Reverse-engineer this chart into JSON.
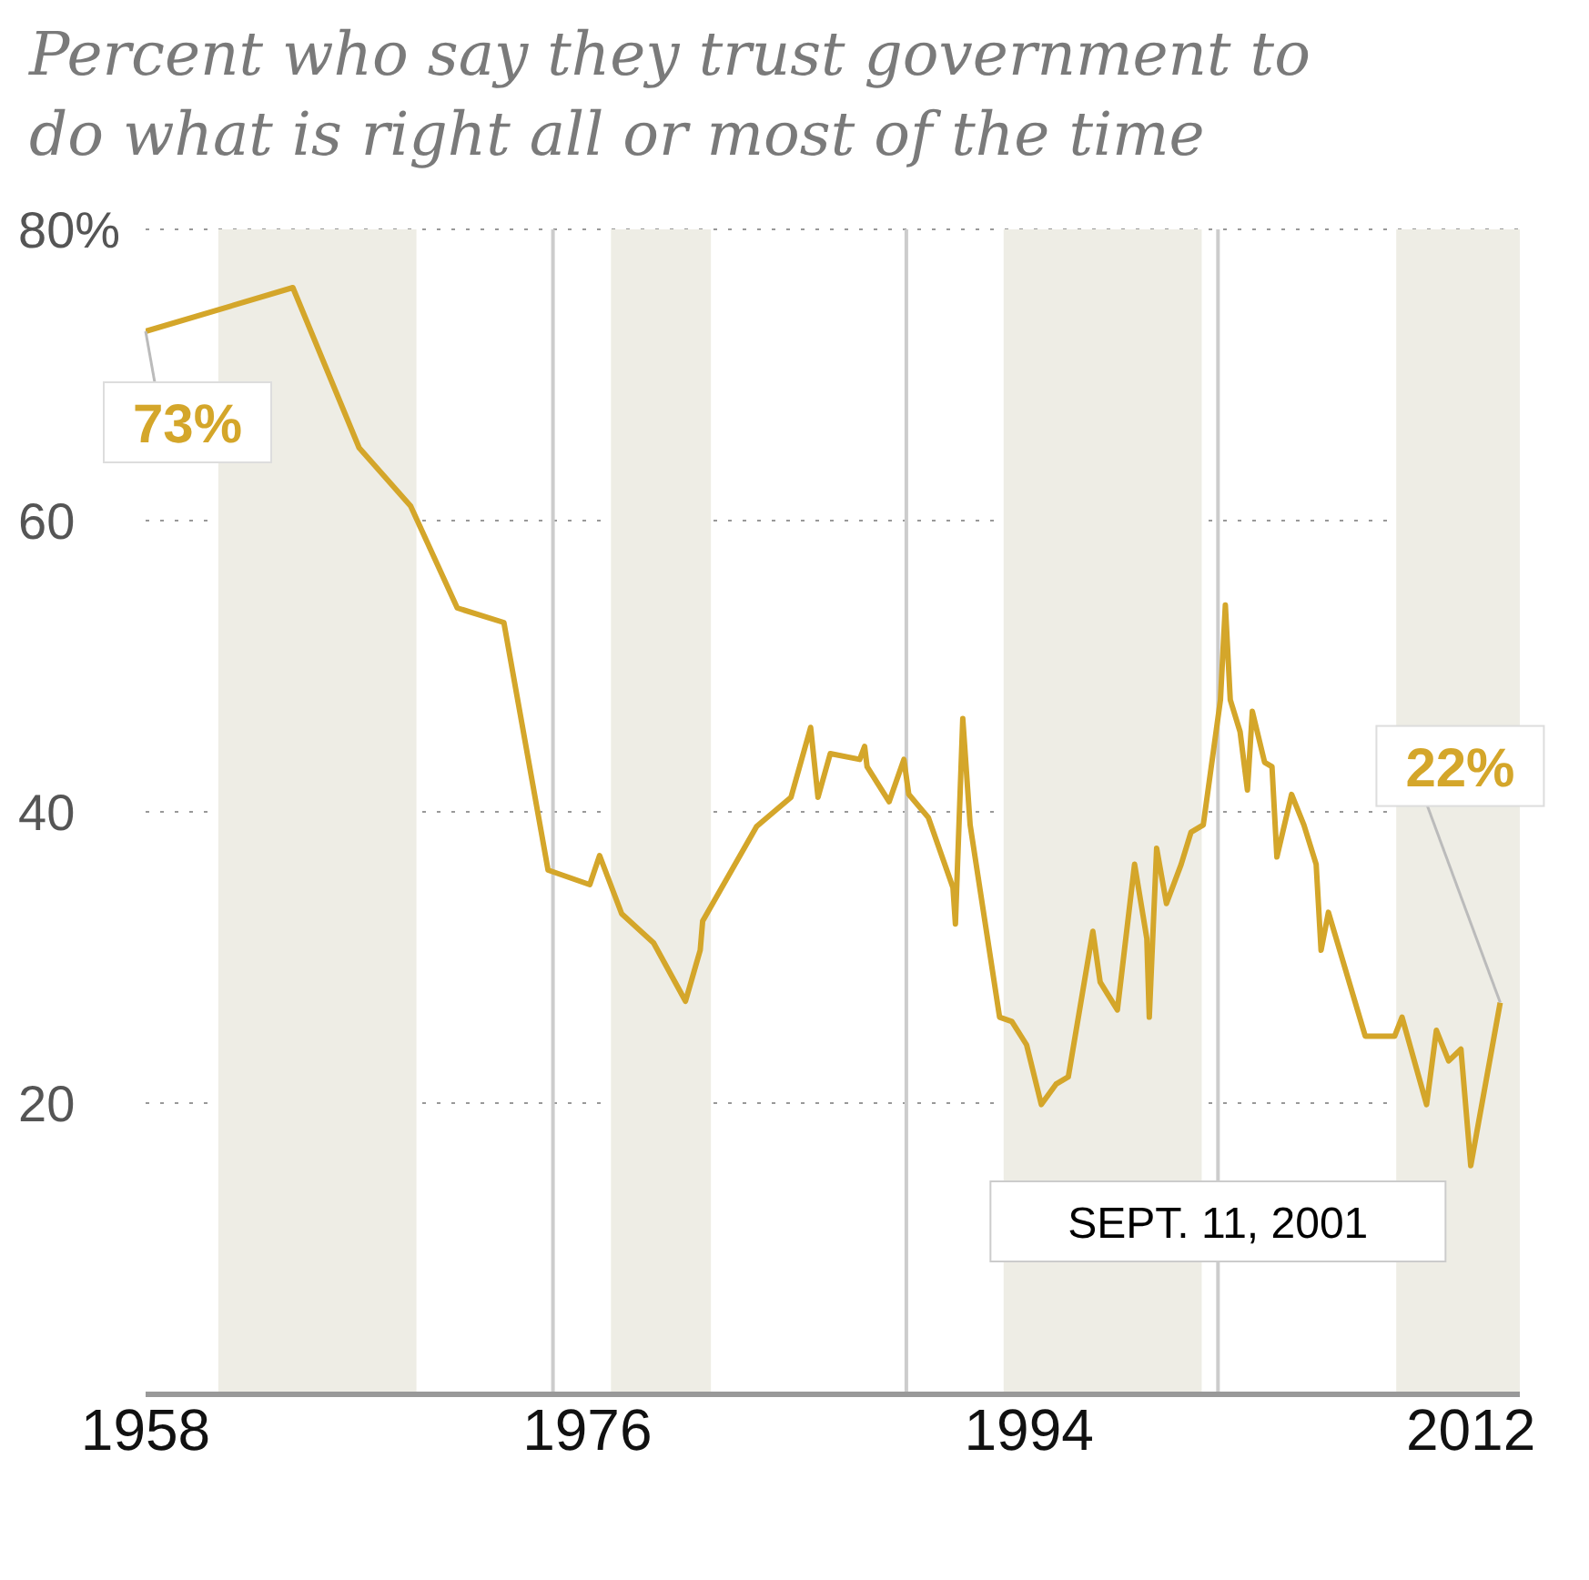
{
  "chart_data": {
    "type": "line",
    "title": "Percent who say they trust government to do what is right all or most of the time",
    "x": [
      1958,
      1964,
      1966.7,
      1968.8,
      1970.7,
      1972.6,
      1974.4,
      1976.1,
      1976.5,
      1977.4,
      1978.7,
      1980,
      1980.6,
      1980.7,
      1982.9,
      1984.3,
      1985.1,
      1985.4,
      1985.9,
      1987.1,
      1987.3,
      1987.4,
      1988.3,
      1988.9,
      1989.1,
      1989.9,
      1990.9,
      1991,
      1991.3,
      1991.6,
      1992.8,
      1993.3,
      1993.9,
      1994.5,
      1995.1,
      1995.6,
      1996.6,
      1996.9,
      1997.6,
      1998.3,
      1998.8,
      1998.9,
      1999.2,
      1999.6,
      2000.2,
      2000.6,
      2001.1,
      2001.8,
      2002,
      2002.2,
      2002.6,
      2002.9,
      2003.1,
      2003.6,
      2003.9,
      2004.1,
      2004.7,
      2005.2,
      2005.7,
      2005.9,
      2006.2,
      2007.7,
      2008.9,
      2009.2,
      2010.2,
      2010.6,
      2011.1,
      2011.6,
      2012,
      2013.2
    ],
    "series": [
      {
        "color": "#d4a62a",
        "values": [
          73,
          76,
          65,
          61,
          54,
          53,
          36,
          35,
          37,
          33,
          31,
          27,
          30.5,
          32.5,
          39,
          41,
          45.8,
          41,
          44,
          43.6,
          44.5,
          43.1,
          40.7,
          43.6,
          41.2,
          39.6,
          34.8,
          32.3,
          46.4,
          39.1,
          25.9,
          25.6,
          24,
          19.9,
          21.3,
          21.8,
          31.8,
          28.3,
          26.4,
          36.4,
          31.3,
          25.9,
          37.5,
          33.7,
          36.4,
          38.6,
          39.1,
          47.7,
          54.2,
          47.7,
          45.5,
          41.5,
          46.9,
          43.4,
          43.1,
          36.9,
          41.2,
          39.1,
          36.4,
          30.5,
          33.1,
          24.6,
          24.6,
          25.9,
          19.9,
          25,
          22.9,
          23.7,
          15.7,
          26.9
        ]
      }
    ],
    "xlim": [
      1958,
      2014
    ],
    "xticks": [
      1958,
      1976,
      1994,
      2012
    ],
    "ylim": [
      0,
      80
    ],
    "yticks": [
      20,
      40,
      60,
      {
        "value": 80,
        "label": "80%"
      }
    ],
    "grid": "y",
    "bands": [
      {
        "axis": "x",
        "from": 1961,
        "to": 1963.9,
        "color": "#eeede5"
      },
      {
        "axis": "x",
        "from": 1963.9,
        "to": 1969,
        "color": "#eeede5"
      },
      {
        "axis": "x",
        "from": 1977,
        "to": 1981,
        "color": "#eeede5"
      },
      {
        "axis": "x",
        "from": 1993,
        "to": 2001,
        "color": "#eeede5"
      },
      {
        "axis": "x",
        "from": 2009,
        "to": 2014,
        "color": "#eeede5"
      }
    ],
    "ref_lines": [
      {
        "axis": "x",
        "value": 1974.6,
        "color": "#cccccc"
      },
      {
        "axis": "x",
        "value": 1989,
        "color": "#cccccc"
      },
      {
        "axis": "x",
        "value": 2001.7,
        "label": "SEPT. 11, 2001",
        "color": "#cccccc"
      }
    ],
    "annotations": [
      {
        "text": "73%",
        "x": 1958,
        "y": 73
      },
      {
        "text": "22%",
        "x": 2013.2,
        "y": 26.9
      }
    ]
  }
}
